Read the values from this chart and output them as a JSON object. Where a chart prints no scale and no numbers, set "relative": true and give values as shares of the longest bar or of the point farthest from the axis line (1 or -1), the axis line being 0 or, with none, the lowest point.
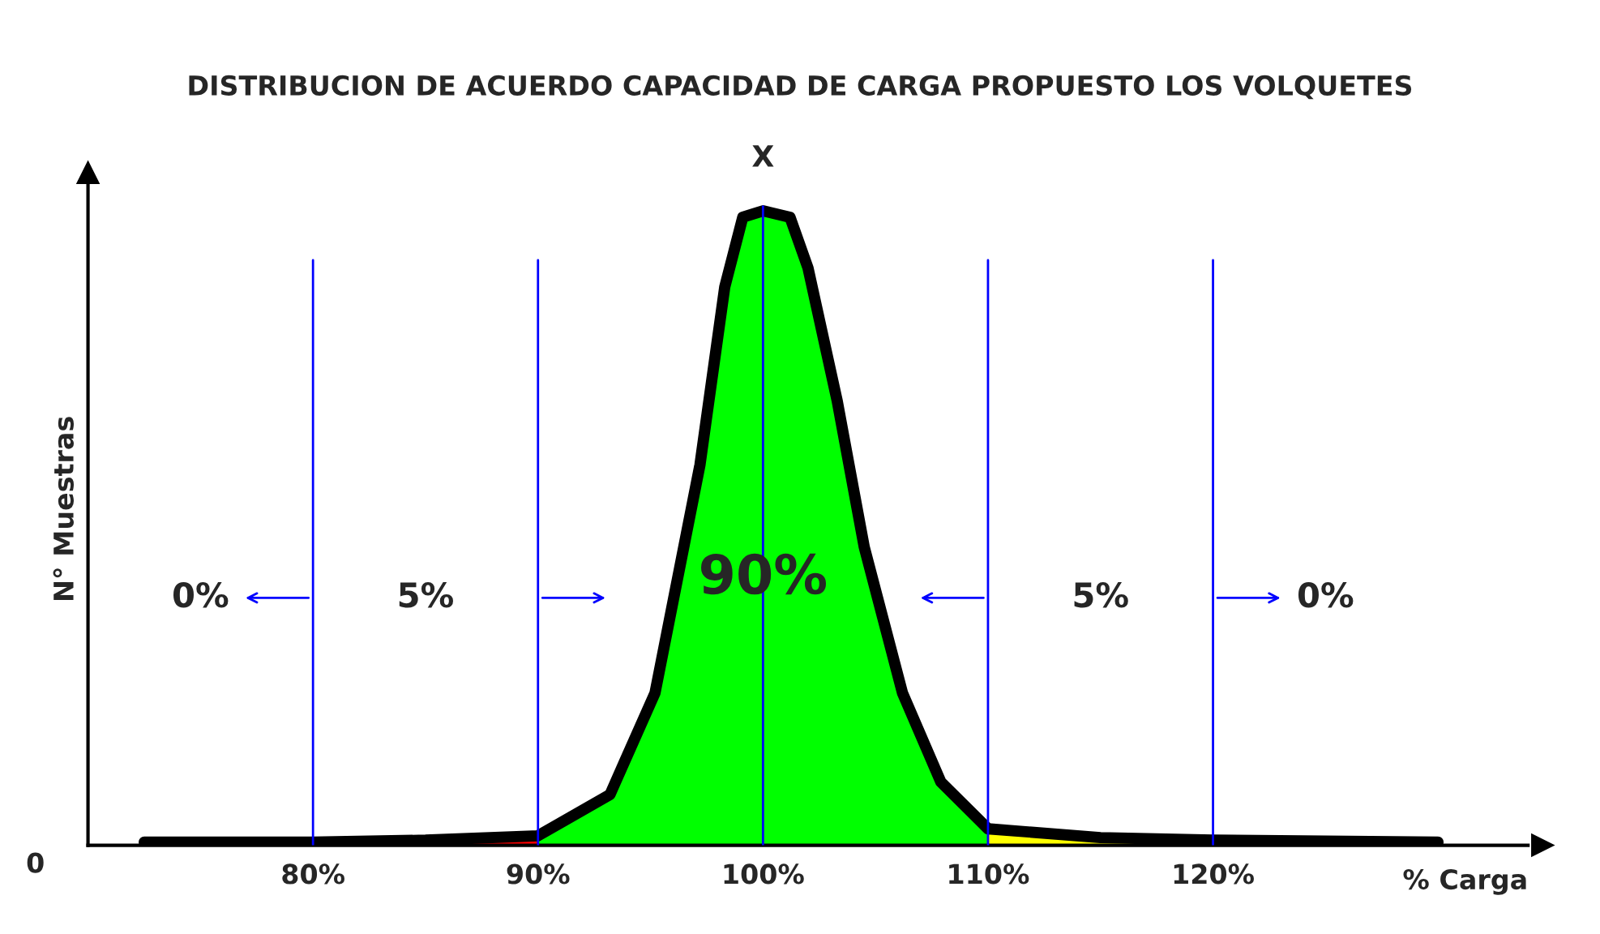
{
  "chart_data": {
    "type": "area",
    "title": "DISTRIBUCION DE ACUERDO CAPACIDAD DE CARGA PROPUESTO LOS VOLQUETES",
    "xlabel": "% Carga",
    "ylabel": "N° Muestras",
    "relative": true,
    "xlim": [
      70,
      134
    ],
    "xticks": [
      {
        "value": 80,
        "label": "80%"
      },
      {
        "value": 90,
        "label": "90%"
      },
      {
        "value": 100,
        "label": "100%"
      },
      {
        "value": 110,
        "label": "110%"
      },
      {
        "value": 120,
        "label": "120%"
      }
    ],
    "series": [
      {
        "color": "#ff0000",
        "x": [
          80,
          85,
          90
        ],
        "values": [
          0.005,
          0.008,
          0.015
        ]
      },
      {
        "color": "#00ff00",
        "x": [
          90,
          93.2,
          95.2,
          97.2,
          98.3,
          99.1,
          100,
          101.2,
          102,
          103.3,
          104.5,
          106.2,
          107.9,
          110
        ],
        "values": [
          0.015,
          0.08,
          0.24,
          0.6,
          0.88,
          0.99,
          1,
          0.99,
          0.91,
          0.7,
          0.47,
          0.24,
          0.1,
          0.026
        ]
      },
      {
        "color": "#ffff00",
        "x": [
          110,
          115,
          120
        ],
        "values": [
          0.026,
          0.012,
          0.008
        ]
      },
      {
        "type": "line",
        "color": "#000000",
        "x": [
          72.5,
          80,
          85,
          90,
          93.2,
          95.2,
          97.2,
          98.3,
          99.1,
          100,
          101.2,
          102,
          103.3,
          104.5,
          106.2,
          107.9,
          110,
          115,
          120,
          130
        ],
        "values": [
          0.005,
          0.005,
          0.008,
          0.015,
          0.08,
          0.24,
          0.6,
          0.88,
          0.99,
          1,
          0.99,
          0.91,
          0.7,
          0.47,
          0.24,
          0.1,
          0.026,
          0.012,
          0.008,
          0.005
        ]
      }
    ],
    "ref_lines": [
      {
        "axis": "x",
        "value": 80,
        "color": "#0000ff"
      },
      {
        "axis": "x",
        "value": 90,
        "color": "#0000ff"
      },
      {
        "axis": "x",
        "value": 100,
        "color": "#0000ff",
        "label": "X"
      },
      {
        "axis": "x",
        "value": 110,
        "color": "#0000ff"
      },
      {
        "axis": "x",
        "value": 120,
        "color": "#0000ff"
      }
    ],
    "annotations": [
      "0",
      {
        "text": "0%",
        "x": 75,
        "y": 0.39
      },
      {
        "text": "5%",
        "x": 85,
        "y": 0.39
      },
      {
        "text": "90%",
        "x": 100,
        "y": 0.42
      },
      {
        "text": "5%",
        "x": 115,
        "y": 0.39
      },
      {
        "text": "0%",
        "x": 125,
        "y": 0.39
      }
    ],
    "grid": false,
    "legend": false
  }
}
